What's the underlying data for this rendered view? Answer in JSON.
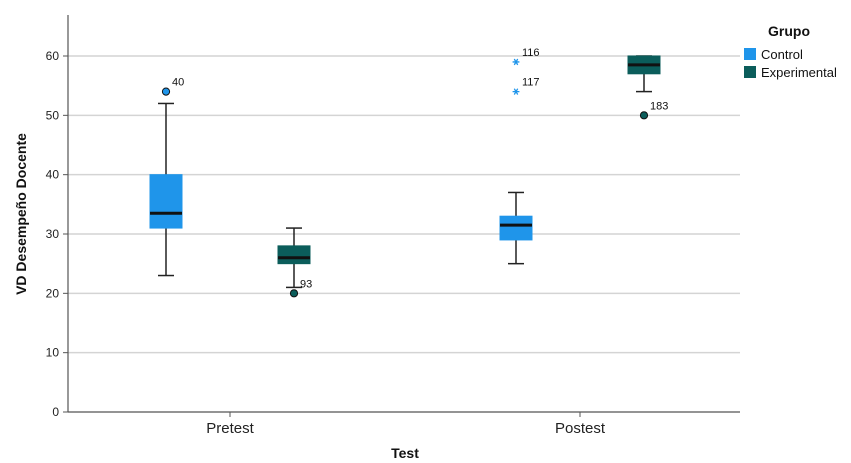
{
  "chart_data": {
    "type": "boxplot",
    "xlabel": "Test",
    "ylabel": "VD Desempeño Docente",
    "ylim": [
      0,
      66
    ],
    "yticks": [
      0,
      10,
      20,
      30,
      40,
      50,
      60
    ],
    "grid": true,
    "categories": [
      "Pretest",
      "Postest"
    ],
    "legend": {
      "title": "Grupo",
      "position": "top-right",
      "entries": [
        "Control",
        "Experimental"
      ]
    },
    "series": [
      {
        "name": "Control",
        "color": "#1f95ea",
        "boxes": [
          {
            "min": 23,
            "q1": 31,
            "median": 33.5,
            "q3": 40,
            "max": 52,
            "outliers": [
              {
                "value": 54,
                "label": "40",
                "marker": "circle"
              }
            ]
          },
          {
            "min": 25,
            "q1": 29,
            "median": 31.5,
            "q3": 33,
            "max": 37,
            "outliers": [
              {
                "value": 59,
                "label": "116",
                "marker": "star"
              },
              {
                "value": 54,
                "label": "117",
                "marker": "star"
              }
            ]
          }
        ]
      },
      {
        "name": "Experimental",
        "color": "#0b5d5b",
        "boxes": [
          {
            "min": 21,
            "q1": 25,
            "median": 26,
            "q3": 28,
            "max": 31,
            "outliers": [
              {
                "value": 20,
                "label": "93",
                "marker": "circle"
              }
            ]
          },
          {
            "min": 54,
            "q1": 57,
            "median": 58.5,
            "q3": 60,
            "max": 60,
            "outliers": [
              {
                "value": 50,
                "label": "183",
                "marker": "circle"
              }
            ]
          }
        ]
      }
    ]
  }
}
